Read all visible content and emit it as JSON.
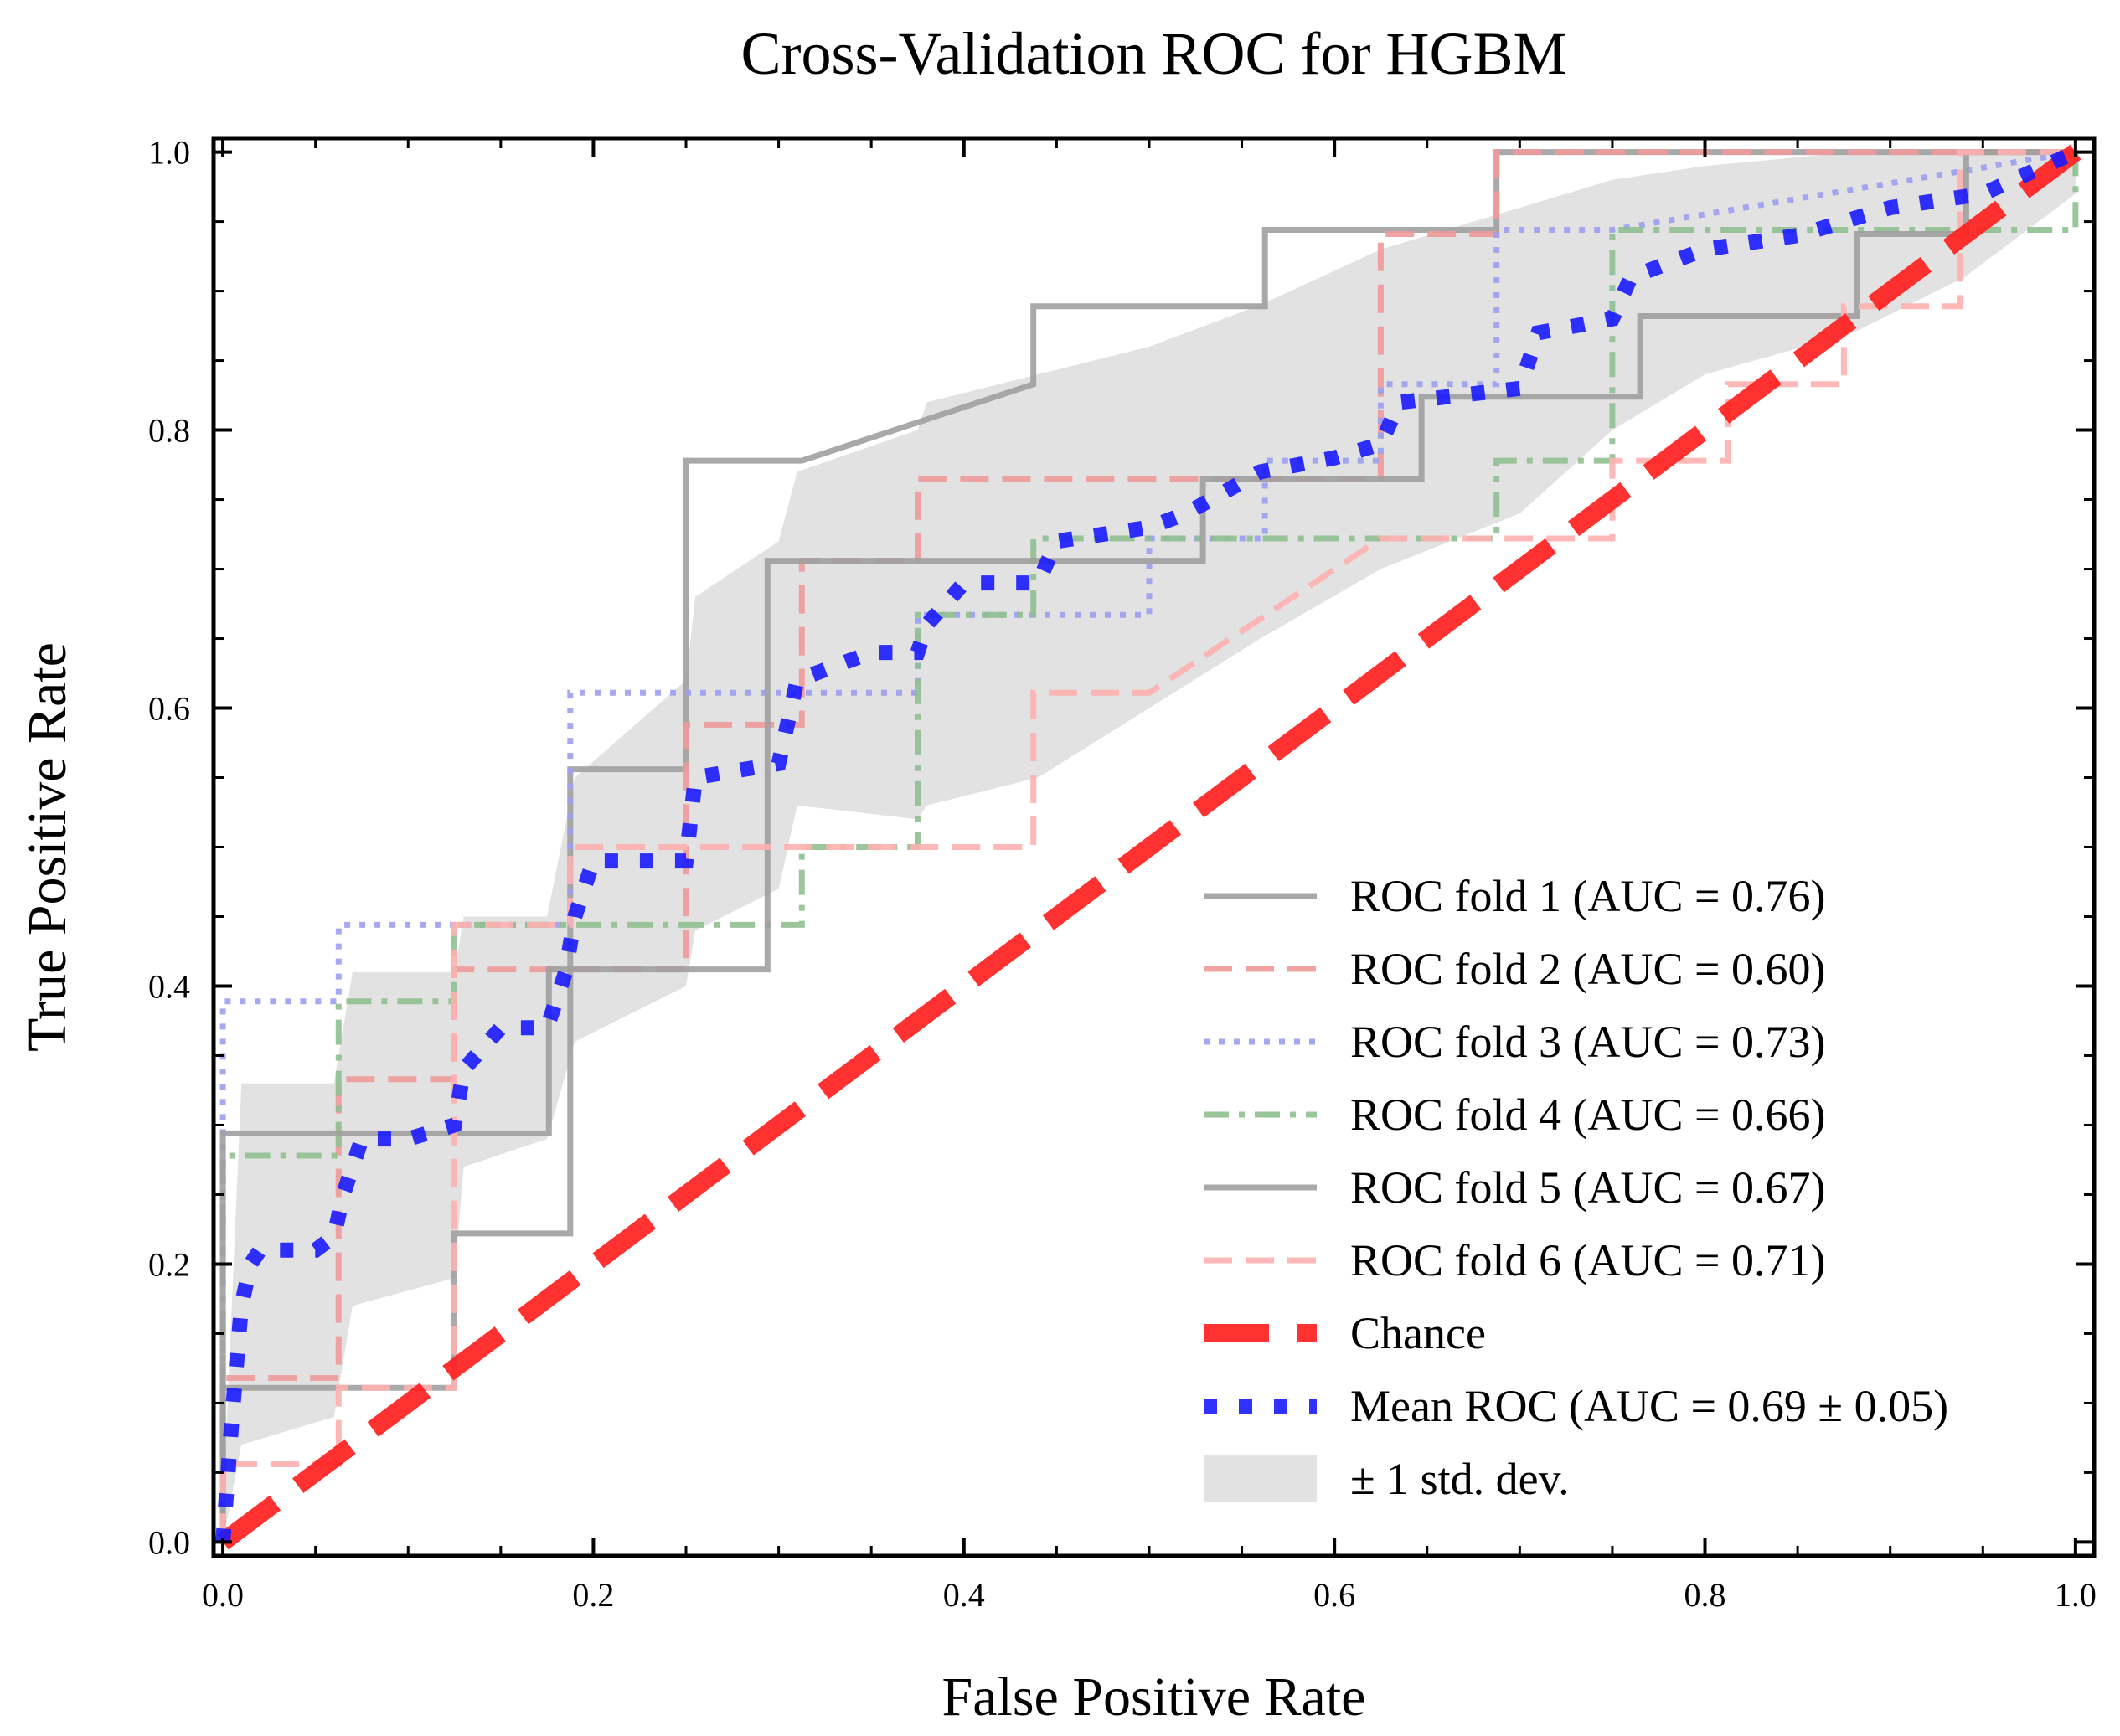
{
  "chart_data": {
    "type": "line",
    "title": "Cross-Validation ROC for HGBM",
    "xlabel": "False Positive Rate",
    "ylabel": "True Positive Rate",
    "xlim": [
      -0.005,
      1.01
    ],
    "ylim": [
      -0.01,
      1.01
    ],
    "grid": false,
    "legend_position": "lower-right",
    "x_ticks": [
      0.0,
      0.2,
      0.4,
      0.6,
      0.8,
      1.0
    ],
    "y_ticks": [
      0.0,
      0.2,
      0.4,
      0.6,
      0.8,
      1.0
    ],
    "x_tick_labels": [
      "0.0",
      "0.2",
      "0.4",
      "0.6",
      "0.8",
      "1.0"
    ],
    "y_tick_labels": [
      "0.0",
      "0.2",
      "0.4",
      "0.6",
      "0.8",
      "1.0"
    ],
    "series": [
      {
        "name": "ROC fold 1 (AUC = 0.76)",
        "style": "solid",
        "color": "#a0a0a0",
        "x": [
          0,
          0,
          0.125,
          0.125,
          0.1875,
          0.1875,
          0.25,
          0.25,
          0.3125,
          0.4375,
          0.4375,
          0.5625,
          0.5625,
          0.6875,
          0.6875,
          1.0
        ],
        "y": [
          0,
          0.111,
          0.111,
          0.222,
          0.222,
          0.556,
          0.556,
          0.778,
          0.778,
          0.833,
          0.889,
          0.889,
          0.944,
          0.944,
          1.0,
          1.0
        ]
      },
      {
        "name": "ROC fold 2 (AUC = 0.60)",
        "style": "dashed",
        "color": "#f09a9a",
        "x": [
          0,
          0,
          0.0625,
          0.0625,
          0.125,
          0.125,
          0.176,
          0.176,
          0.25,
          0.25,
          0.3125,
          0.3125,
          0.375,
          0.375,
          0.625,
          0.625,
          0.6875,
          0.6875,
          0.9375,
          0.9375,
          1.0
        ],
        "y": [
          0,
          0.118,
          0.118,
          0.333,
          0.333,
          0.412,
          0.412,
          0.412,
          0.412,
          0.588,
          0.588,
          0.706,
          0.706,
          0.765,
          0.765,
          0.941,
          0.941,
          1.0,
          1.0,
          1.0,
          1.0
        ]
      },
      {
        "name": "ROC fold 3 (AUC = 0.73)",
        "style": "dotted",
        "color": "#9aa0f0",
        "x": [
          0,
          0,
          0.0625,
          0.0625,
          0.1875,
          0.1875,
          0.375,
          0.375,
          0.4375,
          0.4375,
          0.5,
          0.5,
          0.5625,
          0.5625,
          0.625,
          0.625,
          0.6875,
          0.6875,
          0.75,
          1.0
        ],
        "y": [
          0,
          0.389,
          0.389,
          0.444,
          0.444,
          0.611,
          0.611,
          0.667,
          0.667,
          0.667,
          0.667,
          0.722,
          0.722,
          0.778,
          0.778,
          0.833,
          0.833,
          0.944,
          0.944,
          1.0
        ]
      },
      {
        "name": "ROC fold 4 (AUC = 0.66)",
        "style": "dashdot",
        "color": "#90c090",
        "x": [
          0,
          0,
          0.0625,
          0.0625,
          0.125,
          0.125,
          0.3125,
          0.3125,
          0.375,
          0.375,
          0.4375,
          0.4375,
          0.6875,
          0.6875,
          0.75,
          0.75,
          1.0,
          1.0
        ],
        "y": [
          0,
          0.278,
          0.278,
          0.389,
          0.389,
          0.444,
          0.444,
          0.5,
          0.5,
          0.667,
          0.667,
          0.722,
          0.722,
          0.778,
          0.778,
          0.944,
          0.944,
          1.0
        ]
      },
      {
        "name": "ROC fold 5 (AUC = 0.67)",
        "style": "solid",
        "color": "#a0a0a0",
        "x": [
          0,
          0,
          0.176,
          0.176,
          0.235,
          0.235,
          0.294,
          0.294,
          0.529,
          0.529,
          0.647,
          0.647,
          0.765,
          0.765,
          0.882,
          0.882,
          0.941,
          0.941,
          1.0
        ],
        "y": [
          0,
          0.294,
          0.294,
          0.412,
          0.412,
          0.412,
          0.412,
          0.706,
          0.706,
          0.765,
          0.765,
          0.824,
          0.824,
          0.882,
          0.882,
          0.941,
          0.941,
          1.0,
          1.0
        ]
      },
      {
        "name": "ROC fold 6 (AUC = 0.71)",
        "style": "dashed",
        "color": "#ffb0b0",
        "x": [
          0,
          0,
          0.0625,
          0.0625,
          0.125,
          0.125,
          0.1875,
          0.1875,
          0.4375,
          0.4375,
          0.5,
          0.625,
          0.75,
          0.75,
          0.8125,
          0.8125,
          0.875,
          0.875,
          0.9375,
          0.9375,
          1.0
        ],
        "y": [
          0,
          0.056,
          0.056,
          0.111,
          0.111,
          0.444,
          0.444,
          0.5,
          0.5,
          0.611,
          0.611,
          0.722,
          0.722,
          0.778,
          0.778,
          0.833,
          0.833,
          0.889,
          0.889,
          1.0,
          1.0
        ]
      },
      {
        "name": "Chance",
        "style": "dashed-thick",
        "color": "#ff2020",
        "x": [
          0,
          1
        ],
        "y": [
          0,
          1
        ]
      },
      {
        "name": "Mean ROC (AUC = 0.69 ± 0.05)",
        "style": "dotted-thick",
        "color": "#1a1aff",
        "x": [
          0,
          0.005,
          0.01,
          0.015,
          0.02,
          0.05,
          0.06,
          0.065,
          0.075,
          0.1,
          0.125,
          0.13,
          0.15,
          0.175,
          0.185,
          0.19,
          0.2,
          0.25,
          0.255,
          0.3,
          0.31,
          0.35,
          0.375,
          0.38,
          0.4,
          0.44,
          0.45,
          0.5,
          0.52,
          0.56,
          0.6,
          0.625,
          0.635,
          0.7,
          0.71,
          0.75,
          0.76,
          0.8,
          0.85,
          0.9,
          0.95,
          1.0
        ],
        "y": [
          0,
          0.09,
          0.17,
          0.2,
          0.21,
          0.21,
          0.22,
          0.25,
          0.29,
          0.29,
          0.3,
          0.34,
          0.37,
          0.37,
          0.41,
          0.45,
          0.49,
          0.49,
          0.55,
          0.56,
          0.62,
          0.64,
          0.64,
          0.66,
          0.69,
          0.69,
          0.72,
          0.73,
          0.74,
          0.77,
          0.78,
          0.79,
          0.82,
          0.83,
          0.87,
          0.88,
          0.91,
          0.93,
          0.94,
          0.96,
          0.97,
          1.0
        ]
      }
    ],
    "band": {
      "name": "± 1 std. dev.",
      "color": "#d8d8d8",
      "x": [
        0,
        0.01,
        0.06,
        0.07,
        0.125,
        0.13,
        0.175,
        0.19,
        0.25,
        0.255,
        0.3,
        0.31,
        0.375,
        0.38,
        0.44,
        0.5,
        0.56,
        0.625,
        0.7,
        0.75,
        0.8,
        0.88,
        0.94,
        1.0
      ],
      "upper": [
        0.02,
        0.33,
        0.33,
        0.41,
        0.41,
        0.45,
        0.45,
        0.55,
        0.62,
        0.68,
        0.72,
        0.77,
        0.8,
        0.82,
        0.84,
        0.86,
        0.89,
        0.93,
        0.96,
        0.98,
        0.99,
        1.0,
        1.0,
        1.0
      ],
      "lower": [
        0.0,
        0.07,
        0.09,
        0.17,
        0.19,
        0.27,
        0.29,
        0.36,
        0.4,
        0.44,
        0.47,
        0.53,
        0.52,
        0.53,
        0.55,
        0.6,
        0.65,
        0.7,
        0.74,
        0.8,
        0.84,
        0.87,
        0.91,
        0.97
      ]
    }
  }
}
